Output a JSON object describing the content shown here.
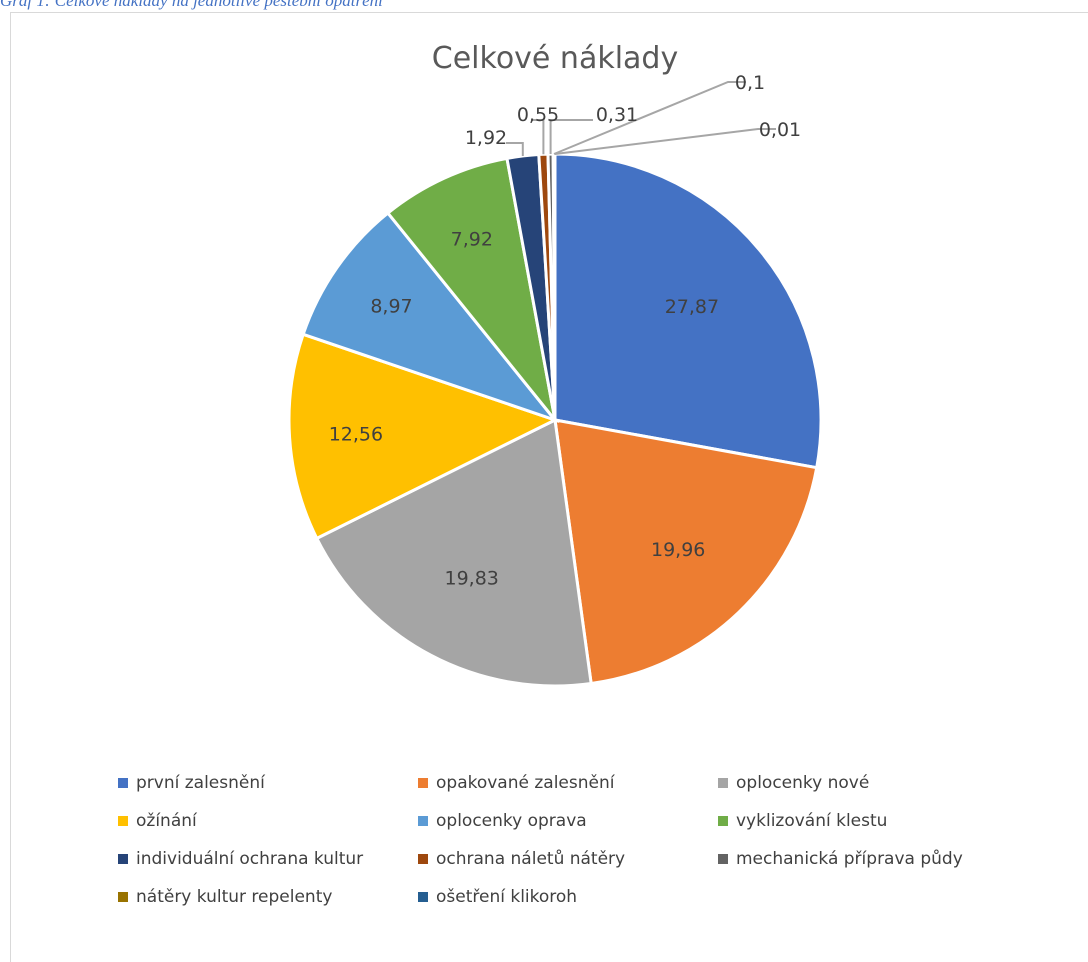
{
  "caption": "Graf 1: Celkové náklady na jednotlivé pěstební opatření",
  "chart_data": {
    "type": "pie",
    "title": "Celkové náklady",
    "legend_position": "bottom",
    "slices": [
      {
        "name": "první zalesnění",
        "value": 27.87,
        "label": "27,87",
        "color": "#4472c4"
      },
      {
        "name": "opakované zalesnění",
        "value": 19.96,
        "label": "19,96",
        "color": "#ed7d31"
      },
      {
        "name": "oplocenky nové",
        "value": 19.83,
        "label": "19,83",
        "color": "#a5a5a5"
      },
      {
        "name": "ožínání",
        "value": 12.56,
        "label": "12,56",
        "color": "#ffc000"
      },
      {
        "name": "oplocenky oprava",
        "value": 8.97,
        "label": "8,97",
        "color": "#5b9bd5"
      },
      {
        "name": "vyklizování klestu",
        "value": 7.92,
        "label": "7,92",
        "color": "#70ad47"
      },
      {
        "name": "individuální ochrana kultur",
        "value": 1.92,
        "label": "1,92",
        "color": "#264478"
      },
      {
        "name": "ochrana náletů nátěry",
        "value": 0.55,
        "label": "0,55",
        "color": "#9e480e"
      },
      {
        "name": "mechanická příprava půdy",
        "value": 0.31,
        "label": "0,31",
        "color": "#636363"
      },
      {
        "name": "nátěry kultur repelenty",
        "value": 0.1,
        "label": "0,1",
        "color": "#997300"
      },
      {
        "name": "ošetření klikoroh",
        "value": 0.01,
        "label": "0,01",
        "color": "#255e91"
      }
    ]
  }
}
